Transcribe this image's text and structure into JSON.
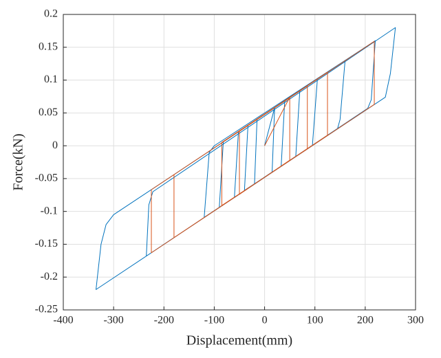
{
  "chart_data": {
    "type": "line",
    "xlabel": "Displacement(mm)",
    "ylabel": "Force(kN)",
    "xlim": [
      -400,
      300
    ],
    "xticks": [
      -400,
      -300,
      -200,
      -100,
      0,
      100,
      200,
      300
    ],
    "ylim": [
      -0.25,
      0.2
    ],
    "yticks": [
      -0.25,
      -0.2,
      -0.15,
      -0.1,
      -0.05,
      0,
      0.05,
      0.1,
      0.15,
      0.2
    ],
    "grid": true,
    "series": [
      {
        "color": "#0072bd",
        "x": [
          0,
          20,
          15,
          -20,
          -15,
          40,
          33,
          -40,
          -33,
          70,
          62,
          -60,
          -52,
          105,
          95,
          90,
          -90,
          -82,
          160,
          150,
          145,
          -120,
          -110,
          -100,
          220,
          212,
          205,
          -235,
          -230,
          -222,
          260,
          250,
          240,
          -335,
          -325,
          -315,
          -300,
          50
        ],
        "y": [
          0,
          0.058,
          -0.04,
          -0.058,
          0.04,
          0.068,
          -0.031,
          -0.068,
          0.031,
          0.084,
          -0.016,
          -0.079,
          0.021,
          0.102,
          0,
          -0.002,
          -0.094,
          0.006,
          0.13,
          0.04,
          0.026,
          -0.109,
          -0.01,
          0,
          0.16,
          0.07,
          0.057,
          -0.168,
          -0.09,
          -0.07,
          0.18,
          0.11,
          0.074,
          -0.219,
          -0.15,
          -0.12,
          -0.105,
          0.073
        ]
      },
      {
        "color": "#d95319",
        "x": [
          0,
          50,
          50,
          -50,
          -50,
          85,
          85,
          -85,
          -85,
          125,
          125,
          -180,
          -180,
          218,
          218,
          -225,
          -225,
          0
        ],
        "y": [
          0,
          0.074,
          -0.022,
          -0.074,
          0.022,
          0.091,
          -0.005,
          -0.091,
          0.005,
          0.112,
          0.016,
          -0.14,
          -0.044,
          0.159,
          0.063,
          -0.163,
          -0.067,
          0.048
        ]
      }
    ]
  }
}
